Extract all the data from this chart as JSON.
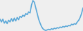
{
  "values": [
    55,
    50,
    55,
    48,
    52,
    47,
    53,
    50,
    56,
    51,
    57,
    52,
    58,
    54,
    60,
    58,
    62,
    60,
    65,
    63,
    68,
    66,
    80,
    88,
    85,
    75,
    65,
    55,
    48,
    42,
    38,
    36,
    35,
    36,
    37,
    36,
    38,
    37,
    39,
    38,
    40,
    39,
    41,
    40,
    42,
    41,
    43,
    42,
    44,
    43,
    46,
    45,
    47,
    46,
    50,
    53,
    58,
    65,
    75
  ],
  "line_color": "#5ba8d8",
  "background_color": "#efefef",
  "linewidth": 1.2
}
